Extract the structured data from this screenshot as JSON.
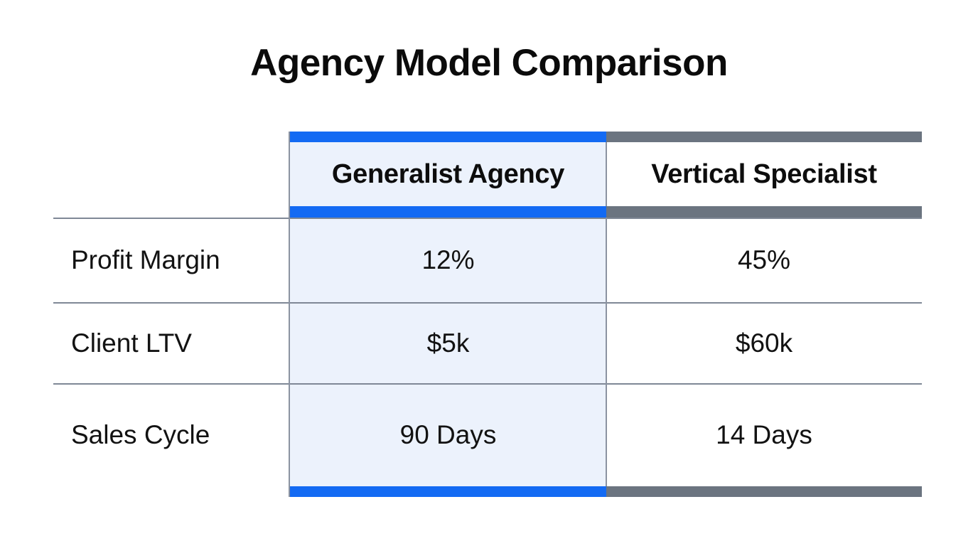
{
  "chart_data": {
    "type": "table",
    "title": "Agency Model Comparison",
    "columns": [
      "Generalist Agency",
      "Vertical Specialist"
    ],
    "row_labels": [
      "Profit Margin",
      "Client LTV",
      "Sales Cycle"
    ],
    "series": [
      {
        "name": "Generalist Agency",
        "values": [
          "12%",
          "$5k",
          "90 Days"
        ]
      },
      {
        "name": "Vertical Specialist",
        "values": [
          "45%",
          "$60k",
          "14 Days"
        ]
      }
    ],
    "layout": {
      "highlight_column": "Generalist Agency",
      "accent_colors": {
        "generalist": "#136af3",
        "specialist": "#6b7480"
      },
      "highlight_fill": "#ecf2fc",
      "grid_line_color": "#7f8896",
      "legend": "none",
      "grid": "horizontal-lines"
    }
  }
}
